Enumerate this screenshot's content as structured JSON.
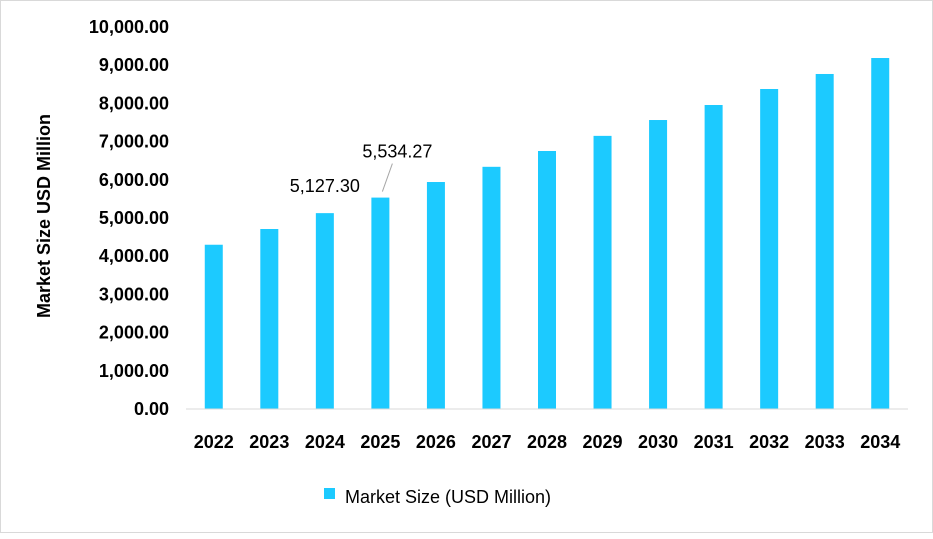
{
  "chart_data": {
    "type": "bar",
    "title": "",
    "xlabel": "",
    "ylabel": "Market Size USD Million",
    "ylim": [
      0,
      10000
    ],
    "yticks": [
      "0.00",
      "1,000.00",
      "2,000.00",
      "3,000.00",
      "4,000.00",
      "5,000.00",
      "6,000.00",
      "7,000.00",
      "8,000.00",
      "9,000.00",
      "10,000.00"
    ],
    "categories": [
      "2022",
      "2023",
      "2024",
      "2025",
      "2026",
      "2027",
      "2028",
      "2029",
      "2030",
      "2031",
      "2032",
      "2033",
      "2034"
    ],
    "series": [
      {
        "name": "Market Size (USD Million)",
        "color": "#1ccaff",
        "values": [
          4300,
          4712,
          5127.3,
          5534.27,
          5942,
          6340,
          6754,
          7150,
          7565,
          7958,
          8377,
          8770,
          9188
        ]
      }
    ],
    "data_labels": [
      {
        "category": "2024",
        "text": "5,127.30"
      },
      {
        "category": "2025",
        "text": "5,534.27"
      }
    ],
    "grid": false,
    "legend": "bottom"
  }
}
